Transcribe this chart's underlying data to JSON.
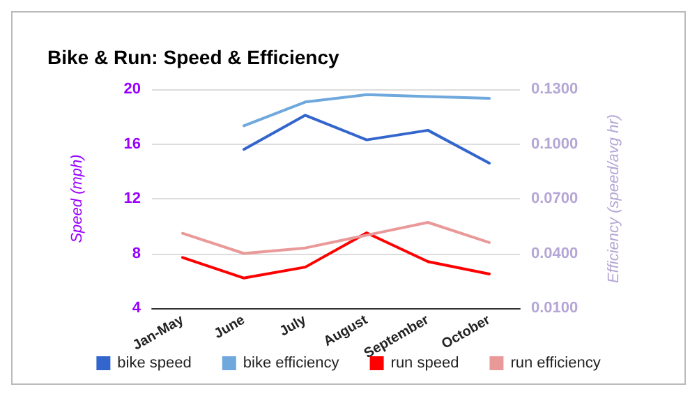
{
  "chart_data": {
    "type": "line",
    "title": "Bike & Run: Speed & Efficiency",
    "ylabel": "Speed (mph)",
    "y2label": "Efficiency (speed/avg hr)",
    "categories": [
      "Jan-May",
      "June",
      "July",
      "August",
      "September",
      "October"
    ],
    "series": [
      {
        "name": "bike speed",
        "color": "#3366cc",
        "values": [
          null,
          15.6,
          18.1,
          16.3,
          17.0,
          14.6
        ]
      },
      {
        "name": "bike efficiency",
        "color": "#6fa8dc",
        "axis": "y2",
        "values": [
          null,
          0.11,
          0.123,
          0.127,
          0.126,
          0.125
        ]
      },
      {
        "name": "run speed",
        "color": "#ff0000",
        "values": [
          7.7,
          6.2,
          7.0,
          9.5,
          7.4,
          6.5
        ]
      },
      {
        "name": "run efficiency",
        "color": "#ea9999",
        "axis": "y2",
        "values": [
          0.051,
          0.04,
          0.043,
          0.05,
          0.057,
          0.046
        ]
      }
    ],
    "ylim": [
      4,
      20
    ],
    "yticks": [
      4,
      8,
      12,
      16,
      20
    ],
    "y2lim": [
      0.01,
      0.13
    ],
    "y2ticks": [
      {
        "value": 0.01,
        "label": "0.0100"
      },
      {
        "value": 0.04,
        "label": "0.0400"
      },
      {
        "value": 0.07,
        "label": "0.0700"
      },
      {
        "value": 0.1,
        "label": "0.1000"
      },
      {
        "value": 0.13,
        "label": "0.1300"
      }
    ],
    "grid": "y",
    "legend": "bottom",
    "marker": "none",
    "line_style": "solid"
  }
}
